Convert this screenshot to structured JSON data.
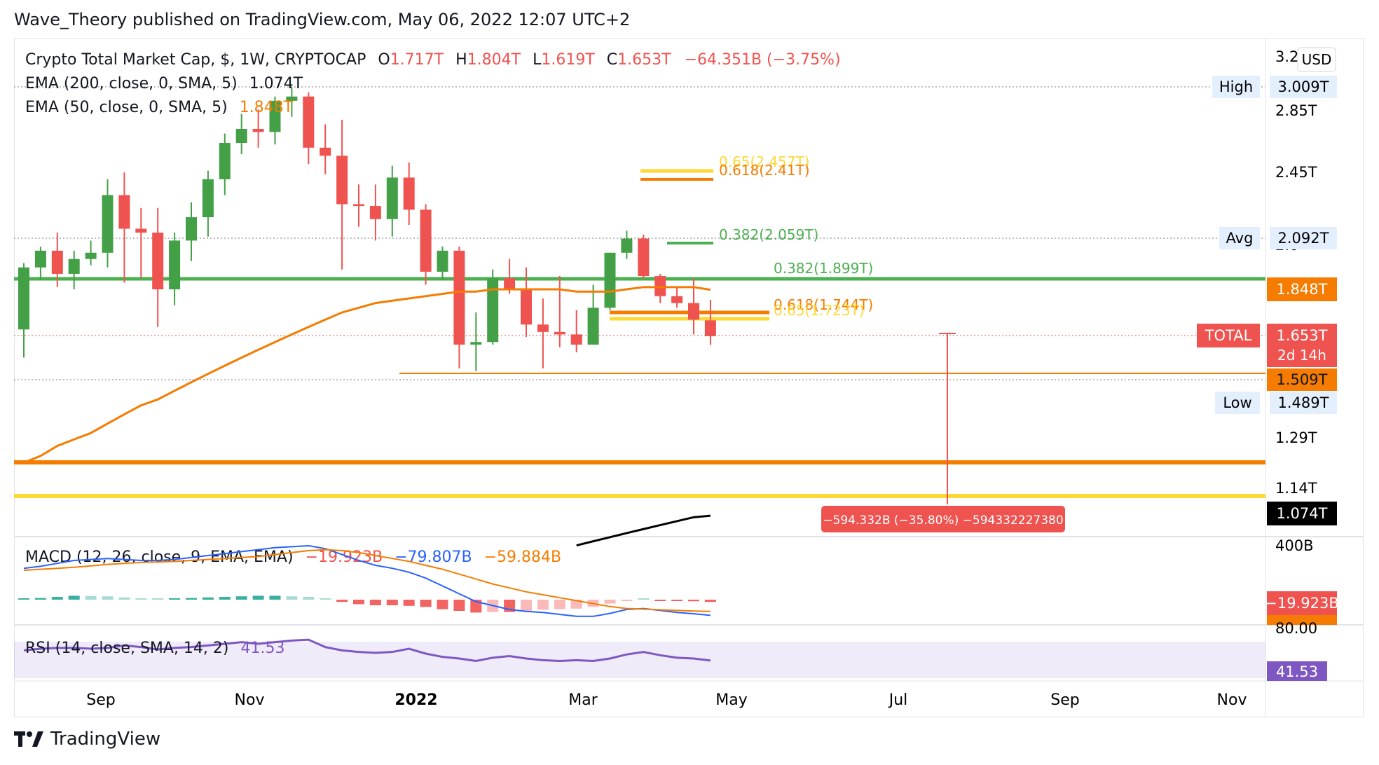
{
  "header": {
    "text": "Wave_Theory published on TradingView.com, May 06, 2022 12:07 UTC+2"
  },
  "footer": {
    "brand": "TradingView"
  },
  "legend": {
    "symbol": "Crypto Total Market Cap, $, 1W, CRYPTOCAP",
    "open_label": "O",
    "open": "1.717T",
    "high_label": "H",
    "high": "1.804T",
    "low_label": "L",
    "low": "1.619T",
    "close_label": "C",
    "close": "1.653T",
    "change": "−64.351B (−3.75%)",
    "ema200": {
      "label": "EMA (200, close, 0, SMA, 5)",
      "value": "1.074T"
    },
    "ema50": {
      "label": "EMA (50, close, 0, SMA, 5)",
      "value": "1.848T"
    }
  },
  "currency_button": "USD",
  "colors": {
    "up": "#43a047",
    "down": "#ef5350",
    "ema50": "#f57c00",
    "ema200": "#000000",
    "fib_green": "#4caf50",
    "fib_yellow": "#fdd835",
    "fib_orange": "#f57c00",
    "macd": "#2962ff",
    "signal": "#f57c00",
    "rsi": "#7e57c2"
  },
  "price_axis": {
    "ticks": [
      "3.2",
      "2.85T",
      "2.45T",
      "2.0",
      "1.29T",
      "1.14T"
    ],
    "badges": {
      "high_label": "High",
      "high": "3.009T",
      "avg_label": "Avg",
      "avg": "2.092T",
      "ema50": "1.848T",
      "total_label": "TOTAL",
      "total": "1.653T",
      "countdown": "2d 14h",
      "support": "1.509T",
      "low_label": "Low",
      "low": "1.489T",
      "ema200": "1.074T"
    }
  },
  "fib_labels": {
    "f065": "0.65(2.457T)",
    "f0618_top": "0.618(2.41T)",
    "f0382_upper": "0.382(2.059T)",
    "f0382_lower": "0.382(1.899T)",
    "f0618_low": "0.618(1.744T)",
    "f065_low": "0.65(1.723T)"
  },
  "measure": {
    "text": "−594.332B (−35.80%) −594332227380"
  },
  "macd": {
    "label": "MACD (12, 26, close, 9, EMA, EMA)",
    "hist": "−19.923B",
    "macd": "−79.807B",
    "signal": "−59.884B",
    "axis_tick": "400B",
    "badge_hist": "−19.923B",
    "badge_signal": "−59.884B"
  },
  "rsi": {
    "label": "RSI (14, close, SMA, 14, 2)",
    "value": "41.53",
    "axis_tick": "80.00",
    "badge": "41.53"
  },
  "x_axis": [
    "Sep",
    "Nov",
    "2022",
    "Mar",
    "May",
    "Jul",
    "Sep",
    "Nov"
  ],
  "chart_data": {
    "type": "candlestick",
    "title": "Crypto Total Market Cap, $, 1W, CRYPTOCAP",
    "unit": "T",
    "candles": [
      {
        "o": 1.68,
        "h": 1.97,
        "l": 1.57,
        "c": 1.95
      },
      {
        "o": 1.95,
        "h": 2.05,
        "l": 1.89,
        "c": 2.03
      },
      {
        "o": 2.03,
        "h": 2.12,
        "l": 1.86,
        "c": 1.92
      },
      {
        "o": 1.92,
        "h": 2.03,
        "l": 1.85,
        "c": 1.99
      },
      {
        "o": 1.99,
        "h": 2.08,
        "l": 1.96,
        "c": 2.02
      },
      {
        "o": 2.02,
        "h": 2.41,
        "l": 1.95,
        "c": 2.32
      },
      {
        "o": 2.32,
        "h": 2.45,
        "l": 1.88,
        "c": 2.14
      },
      {
        "o": 2.14,
        "h": 2.25,
        "l": 1.9,
        "c": 2.12
      },
      {
        "o": 2.12,
        "h": 2.25,
        "l": 1.69,
        "c": 1.85
      },
      {
        "o": 1.85,
        "h": 2.12,
        "l": 1.78,
        "c": 2.08
      },
      {
        "o": 2.08,
        "h": 2.28,
        "l": 1.98,
        "c": 2.2
      },
      {
        "o": 2.2,
        "h": 2.46,
        "l": 2.1,
        "c": 2.41
      },
      {
        "o": 2.41,
        "h": 2.69,
        "l": 2.32,
        "c": 2.63
      },
      {
        "o": 2.63,
        "h": 2.82,
        "l": 2.56,
        "c": 2.72
      },
      {
        "o": 2.72,
        "h": 2.85,
        "l": 2.6,
        "c": 2.7
      },
      {
        "o": 2.7,
        "h": 2.94,
        "l": 2.62,
        "c": 2.91
      },
      {
        "o": 2.91,
        "h": 3.01,
        "l": 2.8,
        "c": 2.94
      },
      {
        "o": 2.94,
        "h": 2.97,
        "l": 2.5,
        "c": 2.6
      },
      {
        "o": 2.6,
        "h": 2.75,
        "l": 2.44,
        "c": 2.55
      },
      {
        "o": 2.55,
        "h": 2.78,
        "l": 1.94,
        "c": 2.27
      },
      {
        "o": 2.27,
        "h": 2.38,
        "l": 2.15,
        "c": 2.26
      },
      {
        "o": 2.26,
        "h": 2.38,
        "l": 2.08,
        "c": 2.19
      },
      {
        "o": 2.19,
        "h": 2.49,
        "l": 2.1,
        "c": 2.42
      },
      {
        "o": 2.42,
        "h": 2.51,
        "l": 2.16,
        "c": 2.24
      },
      {
        "o": 2.24,
        "h": 2.27,
        "l": 1.87,
        "c": 1.93
      },
      {
        "o": 1.93,
        "h": 2.05,
        "l": 1.89,
        "c": 2.03
      },
      {
        "o": 2.03,
        "h": 2.05,
        "l": 1.53,
        "c": 1.62
      },
      {
        "o": 1.62,
        "h": 1.75,
        "l": 1.52,
        "c": 1.63
      },
      {
        "o": 1.63,
        "h": 1.94,
        "l": 1.62,
        "c": 1.9
      },
      {
        "o": 1.9,
        "h": 1.99,
        "l": 1.83,
        "c": 1.85
      },
      {
        "o": 1.85,
        "h": 1.95,
        "l": 1.65,
        "c": 1.7
      },
      {
        "o": 1.7,
        "h": 1.81,
        "l": 1.53,
        "c": 1.67
      },
      {
        "o": 1.67,
        "h": 1.91,
        "l": 1.61,
        "c": 1.66
      },
      {
        "o": 1.66,
        "h": 1.76,
        "l": 1.59,
        "c": 1.62
      },
      {
        "o": 1.62,
        "h": 1.87,
        "l": 1.62,
        "c": 1.77
      },
      {
        "o": 1.77,
        "h": 2.02,
        "l": 1.76,
        "c": 2.02
      },
      {
        "o": 2.02,
        "h": 2.13,
        "l": 1.99,
        "c": 2.09
      },
      {
        "o": 2.09,
        "h": 2.11,
        "l": 1.9,
        "c": 1.91
      },
      {
        "o": 1.91,
        "h": 1.92,
        "l": 1.79,
        "c": 1.82
      },
      {
        "o": 1.82,
        "h": 1.86,
        "l": 1.77,
        "c": 1.79
      },
      {
        "o": 1.79,
        "h": 1.9,
        "l": 1.66,
        "c": 1.72
      },
      {
        "o": 1.717,
        "h": 1.804,
        "l": 1.619,
        "c": 1.653
      }
    ],
    "ema50_values": [
      1.22,
      1.24,
      1.27,
      1.29,
      1.31,
      1.34,
      1.37,
      1.4,
      1.42,
      1.45,
      1.48,
      1.51,
      1.54,
      1.57,
      1.6,
      1.63,
      1.66,
      1.69,
      1.72,
      1.75,
      1.77,
      1.79,
      1.8,
      1.81,
      1.82,
      1.83,
      1.84,
      1.84,
      1.85,
      1.85,
      1.85,
      1.85,
      1.85,
      1.84,
      1.84,
      1.84,
      1.85,
      1.86,
      1.86,
      1.86,
      1.86,
      1.848
    ],
    "ema200_values": [
      1.0,
      1.01,
      1.02,
      1.03,
      1.04,
      1.05,
      1.06,
      1.07,
      1.074
    ],
    "macd_line": [
      160,
      170,
      185,
      200,
      205,
      210,
      205,
      200,
      200,
      205,
      215,
      225,
      235,
      245,
      255,
      265,
      270,
      275,
      260,
      230,
      200,
      175,
      160,
      140,
      110,
      70,
      30,
      -10,
      -30,
      -50,
      -60,
      -65,
      -75,
      -85,
      -85,
      -70,
      -50,
      -45,
      -55,
      -65,
      -72,
      -79.807
    ],
    "signal_line": [
      150,
      155,
      160,
      165,
      172,
      180,
      185,
      190,
      192,
      195,
      200,
      205,
      210,
      215,
      220,
      230,
      240,
      250,
      255,
      250,
      240,
      225,
      210,
      195,
      175,
      155,
      130,
      105,
      80,
      60,
      40,
      25,
      10,
      -5,
      -20,
      -35,
      -45,
      -48,
      -52,
      -55,
      -58,
      -59.884
    ],
    "macd_hist": [
      10,
      15,
      25,
      35,
      33,
      30,
      20,
      10,
      8,
      10,
      15,
      20,
      25,
      30,
      35,
      35,
      30,
      25,
      5,
      -20,
      -40,
      -50,
      -50,
      -55,
      -65,
      -85,
      -100,
      -115,
      -110,
      -110,
      -100,
      -90,
      -85,
      -80,
      -65,
      -35,
      -5,
      3,
      -3,
      -10,
      -14,
      -19.923
    ],
    "rsi_values": [
      54,
      56,
      57,
      57,
      56,
      57,
      60,
      58,
      55,
      57,
      58,
      60,
      62,
      64,
      62,
      64,
      66,
      67,
      58,
      54,
      52,
      51,
      52,
      56,
      50,
      46,
      44,
      41,
      45,
      47,
      44,
      42,
      41,
      42,
      41,
      44,
      49,
      52,
      48,
      45,
      44,
      41.53
    ],
    "x_axis": [
      "Sep",
      "Nov",
      "2022",
      "Mar",
      "May",
      "Jul",
      "Sep",
      "Nov"
    ],
    "y_ticks": [
      "3.2",
      "2.85T",
      "2.45T",
      "1.29T",
      "1.14T"
    ],
    "fib_levels": [
      {
        "label": "0.65(2.457T)",
        "value": 2.457
      },
      {
        "label": "0.618(2.41T)",
        "value": 2.41
      },
      {
        "label": "0.382(2.059T)",
        "value": 2.059
      },
      {
        "label": "0.382(1.899T)",
        "value": 1.899
      },
      {
        "label": "0.618(1.744T)",
        "value": 1.744
      },
      {
        "label": "0.65(1.723T)",
        "value": 1.723
      }
    ],
    "horizontal_levels": {
      "support": 1.509,
      "orange": 1.203,
      "yellow": 1.123
    },
    "high": 3.009,
    "low": 1.489,
    "avg": 2.092
  }
}
